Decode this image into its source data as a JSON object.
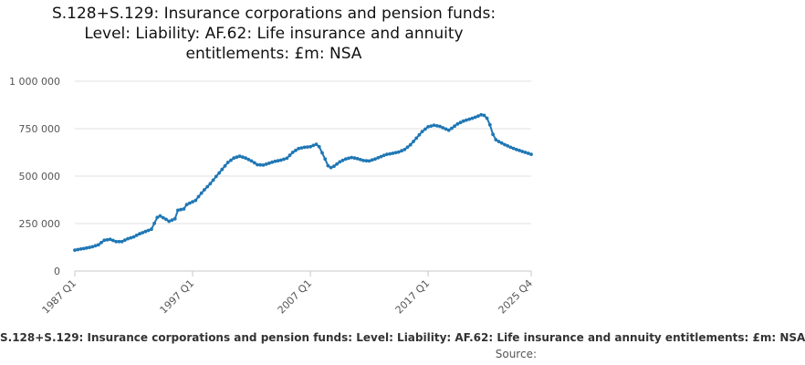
{
  "chart_data": {
    "type": "line",
    "title_lines": [
      "S.128+S.129: Insurance corporations and pension funds:",
      "Level: Liability: AF.62: Life insurance and annuity",
      "entitlements: £m: NSA"
    ],
    "xlabel": "",
    "ylabel": "",
    "ylim": [
      0,
      1000000
    ],
    "y_ticks": [
      0,
      250000,
      500000,
      750000,
      1000000
    ],
    "y_tick_labels": [
      "0",
      "250 000",
      "500 000",
      "750 000",
      "1 000 000"
    ],
    "x_tick_labels": [
      "1987 Q1",
      "1997 Q1",
      "2007 Q1",
      "2017 Q1",
      "2025 Q4"
    ],
    "x_tick_years": [
      1987.0,
      1997.0,
      2007.0,
      2017.0,
      2025.75
    ],
    "xlim": [
      1987.0,
      2025.75
    ],
    "grid": "horizontal",
    "series_color": "#1f77b4",
    "series": [
      {
        "name": "S.128+S.129: Insurance corporations and pension funds: Level: Liability: AF.62: Life insurance and annuity entitlements: £m: NSA",
        "points": [
          [
            1987.0,
            110000
          ],
          [
            1987.5,
            116000
          ],
          [
            1988.0,
            121000
          ],
          [
            1988.5,
            128000
          ],
          [
            1989.0,
            138000
          ],
          [
            1989.5,
            162000
          ],
          [
            1990.0,
            167000
          ],
          [
            1990.5,
            155000
          ],
          [
            1991.0,
            155000
          ],
          [
            1991.5,
            170000
          ],
          [
            1992.0,
            180000
          ],
          [
            1992.5,
            196000
          ],
          [
            1993.0,
            208000
          ],
          [
            1993.5,
            220000
          ],
          [
            1994.0,
            282000
          ],
          [
            1994.25,
            290000
          ],
          [
            1994.75,
            272000
          ],
          [
            1995.0,
            262000
          ],
          [
            1995.5,
            275000
          ],
          [
            1995.75,
            320000
          ],
          [
            1996.25,
            327000
          ],
          [
            1996.5,
            350000
          ],
          [
            1997.0,
            365000
          ],
          [
            1997.25,
            372000
          ],
          [
            1997.5,
            392000
          ],
          [
            1998.0,
            428000
          ],
          [
            1998.5,
            460000
          ],
          [
            1999.0,
            498000
          ],
          [
            1999.5,
            535000
          ],
          [
            2000.0,
            572000
          ],
          [
            2000.5,
            595000
          ],
          [
            2001.0,
            605000
          ],
          [
            2001.5,
            595000
          ],
          [
            2002.0,
            580000
          ],
          [
            2002.5,
            560000
          ],
          [
            2003.0,
            558000
          ],
          [
            2003.5,
            568000
          ],
          [
            2004.0,
            578000
          ],
          [
            2004.5,
            584000
          ],
          [
            2005.0,
            594000
          ],
          [
            2005.5,
            625000
          ],
          [
            2006.0,
            645000
          ],
          [
            2006.5,
            652000
          ],
          [
            2007.0,
            655000
          ],
          [
            2007.5,
            668000
          ],
          [
            2007.75,
            655000
          ],
          [
            2008.25,
            590000
          ],
          [
            2008.5,
            555000
          ],
          [
            2008.75,
            545000
          ],
          [
            2009.0,
            552000
          ],
          [
            2009.5,
            575000
          ],
          [
            2010.0,
            590000
          ],
          [
            2010.5,
            598000
          ],
          [
            2011.0,
            592000
          ],
          [
            2011.5,
            582000
          ],
          [
            2012.0,
            580000
          ],
          [
            2012.5,
            590000
          ],
          [
            2013.0,
            603000
          ],
          [
            2013.5,
            615000
          ],
          [
            2014.0,
            620000
          ],
          [
            2014.5,
            627000
          ],
          [
            2015.0,
            640000
          ],
          [
            2015.5,
            665000
          ],
          [
            2016.0,
            700000
          ],
          [
            2016.5,
            735000
          ],
          [
            2017.0,
            760000
          ],
          [
            2017.5,
            768000
          ],
          [
            2018.0,
            762000
          ],
          [
            2018.5,
            748000
          ],
          [
            2018.75,
            742000
          ],
          [
            2019.0,
            752000
          ],
          [
            2019.5,
            775000
          ],
          [
            2020.0,
            790000
          ],
          [
            2020.5,
            800000
          ],
          [
            2021.0,
            810000
          ],
          [
            2021.5,
            823000
          ],
          [
            2021.75,
            820000
          ],
          [
            2022.0,
            805000
          ],
          [
            2022.25,
            770000
          ],
          [
            2022.5,
            720000
          ],
          [
            2022.75,
            692000
          ],
          [
            2023.0,
            682000
          ],
          [
            2023.5,
            666000
          ],
          [
            2024.0,
            652000
          ],
          [
            2024.5,
            640000
          ],
          [
            2025.0,
            630000
          ],
          [
            2025.5,
            620000
          ],
          [
            2025.75,
            615000
          ]
        ]
      }
    ]
  },
  "legend_text": "S.128+S.129: Insurance corporations and pension funds: Level: Liability: AF.62: Life insurance and annuity entitlements: £m: NSA",
  "source_label": "Source:"
}
